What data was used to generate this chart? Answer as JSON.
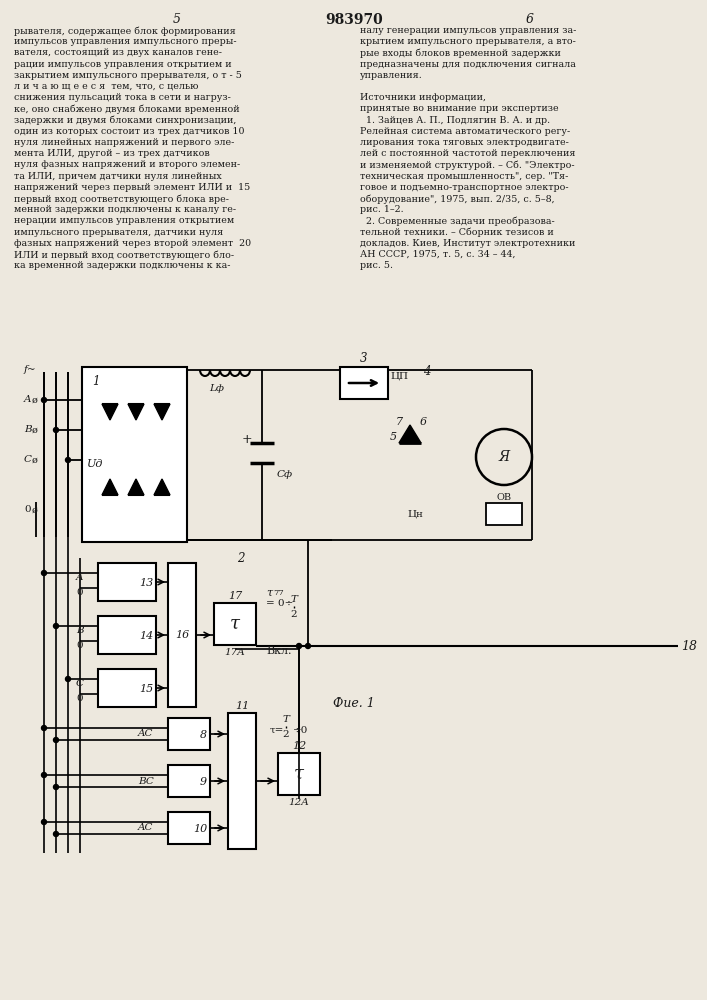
{
  "bg_color": "#ede8de",
  "text_color": "#1a1a1a",
  "page_number_left": "5",
  "patent_number": "983970",
  "page_number_right": "6",
  "fig_label": "Фие. 1"
}
